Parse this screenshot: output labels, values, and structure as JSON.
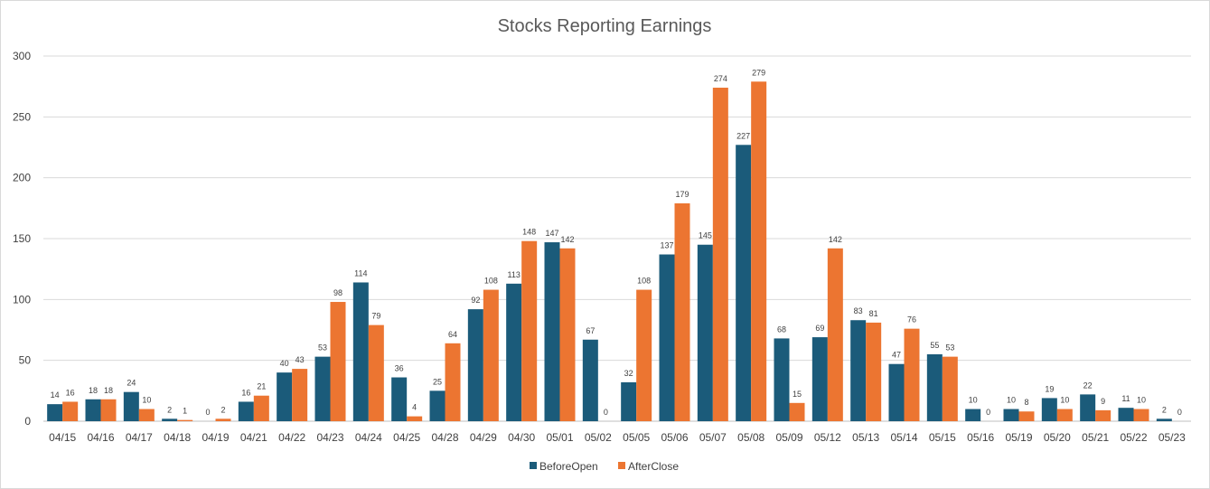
{
  "chart_data": {
    "type": "bar",
    "title": "Stocks Reporting Earnings",
    "xlabel": "",
    "ylabel": "",
    "ylim": [
      0,
      300
    ],
    "yticks": [
      0,
      50,
      100,
      150,
      200,
      250,
      300
    ],
    "grid": true,
    "legend_position": "bottom",
    "categories": [
      "04/15",
      "04/16",
      "04/17",
      "04/18",
      "04/19",
      "04/21",
      "04/22",
      "04/23",
      "04/24",
      "04/25",
      "04/28",
      "04/29",
      "04/30",
      "05/01",
      "05/02",
      "05/05",
      "05/06",
      "05/07",
      "05/08",
      "05/09",
      "05/12",
      "05/13",
      "05/14",
      "05/15",
      "05/16",
      "05/19",
      "05/20",
      "05/21",
      "05/22",
      "05/23"
    ],
    "series": [
      {
        "name": "BeforeOpen",
        "color": "#1b5b7a",
        "values": [
          14,
          18,
          24,
          2,
          0,
          16,
          40,
          53,
          114,
          36,
          25,
          92,
          113,
          147,
          67,
          32,
          137,
          145,
          227,
          68,
          69,
          83,
          47,
          55,
          10,
          10,
          19,
          22,
          11,
          2
        ]
      },
      {
        "name": "AfterClose",
        "color": "#ec7531",
        "values": [
          16,
          18,
          10,
          1,
          2,
          21,
          43,
          98,
          79,
          4,
          64,
          108,
          148,
          142,
          0,
          108,
          179,
          274,
          279,
          15,
          142,
          81,
          76,
          53,
          0,
          8,
          10,
          9,
          10,
          0
        ]
      }
    ]
  }
}
